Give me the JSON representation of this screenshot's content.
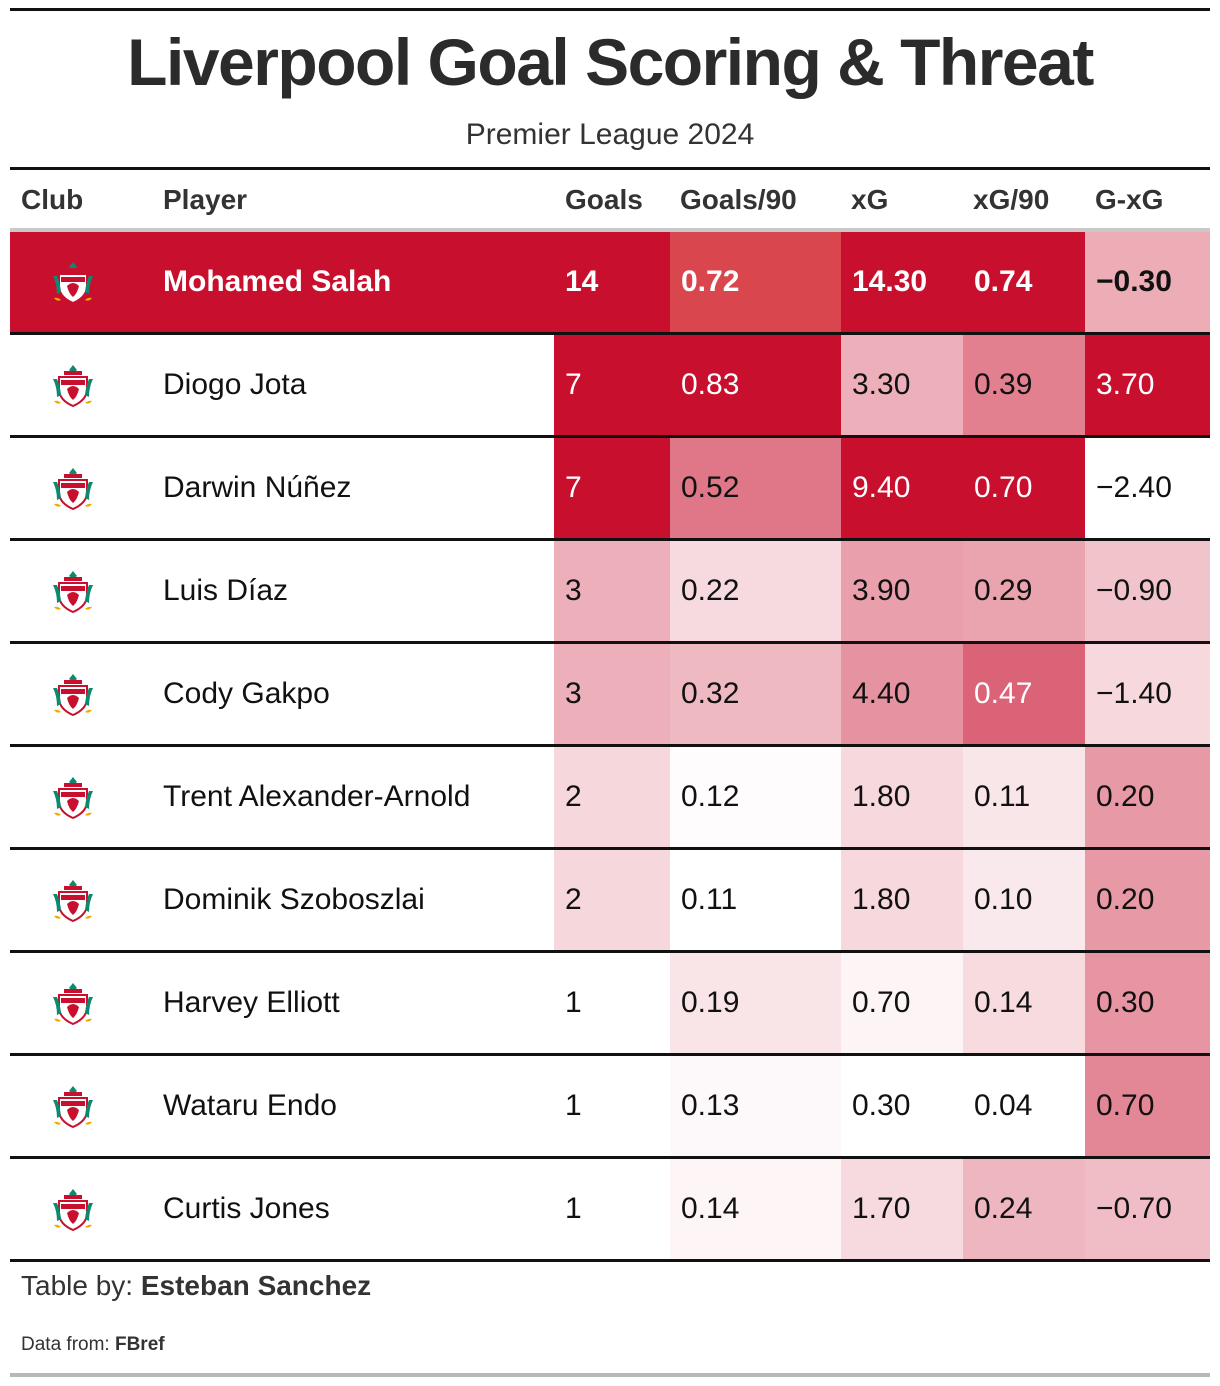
{
  "header": {
    "title": "Liverpool Goal Scoring & Threat",
    "subtitle": "Premier League 2024"
  },
  "columns": [
    "Club",
    "Player",
    "Goals",
    "Goals/90",
    "xG",
    "xG/90",
    "G-xG"
  ],
  "logo_icon": "liverpool-crest-icon",
  "colors": {
    "highlight_row": "#c8102e",
    "heat_high": "#c8102e",
    "heat_low": "#ffffff"
  },
  "chart_data": {
    "type": "table",
    "title": "Liverpool Goal Scoring & Threat",
    "subtitle": "Premier League 2024",
    "highlighted_player": "Mohamed Salah",
    "rows": [
      {
        "player": "Mohamed Salah",
        "goals": "14",
        "goals90": "0.72",
        "xg": "14.30",
        "xg90": "0.74",
        "gxg": "−0.30"
      },
      {
        "player": "Diogo Jota",
        "goals": "7",
        "goals90": "0.83",
        "xg": "3.30",
        "xg90": "0.39",
        "gxg": "3.70"
      },
      {
        "player": "Darwin Núñez",
        "goals": "7",
        "goals90": "0.52",
        "xg": "9.40",
        "xg90": "0.70",
        "gxg": "−2.40"
      },
      {
        "player": "Luis Díaz",
        "goals": "3",
        "goals90": "0.22",
        "xg": "3.90",
        "xg90": "0.29",
        "gxg": "−0.90"
      },
      {
        "player": "Cody Gakpo",
        "goals": "3",
        "goals90": "0.32",
        "xg": "4.40",
        "xg90": "0.47",
        "gxg": "−1.40"
      },
      {
        "player": "Trent Alexander-Arnold",
        "goals": "2",
        "goals90": "0.12",
        "xg": "1.80",
        "xg90": "0.11",
        "gxg": "0.20"
      },
      {
        "player": "Dominik Szoboszlai",
        "goals": "2",
        "goals90": "0.11",
        "xg": "1.80",
        "xg90": "0.10",
        "gxg": "0.20"
      },
      {
        "player": "Harvey Elliott",
        "goals": "1",
        "goals90": "0.19",
        "xg": "0.70",
        "xg90": "0.14",
        "gxg": "0.30"
      },
      {
        "player": "Wataru Endo",
        "goals": "1",
        "goals90": "0.13",
        "xg": "0.30",
        "xg90": "0.04",
        "gxg": "0.70"
      },
      {
        "player": "Curtis Jones",
        "goals": "1",
        "goals90": "0.14",
        "xg": "1.70",
        "xg90": "0.24",
        "gxg": "−0.70"
      }
    ]
  },
  "footer": {
    "table_by_label": "Table by:",
    "table_by_name": "Esteban Sanchez",
    "data_from_label": "Data from:",
    "data_from_name": "FBref"
  }
}
